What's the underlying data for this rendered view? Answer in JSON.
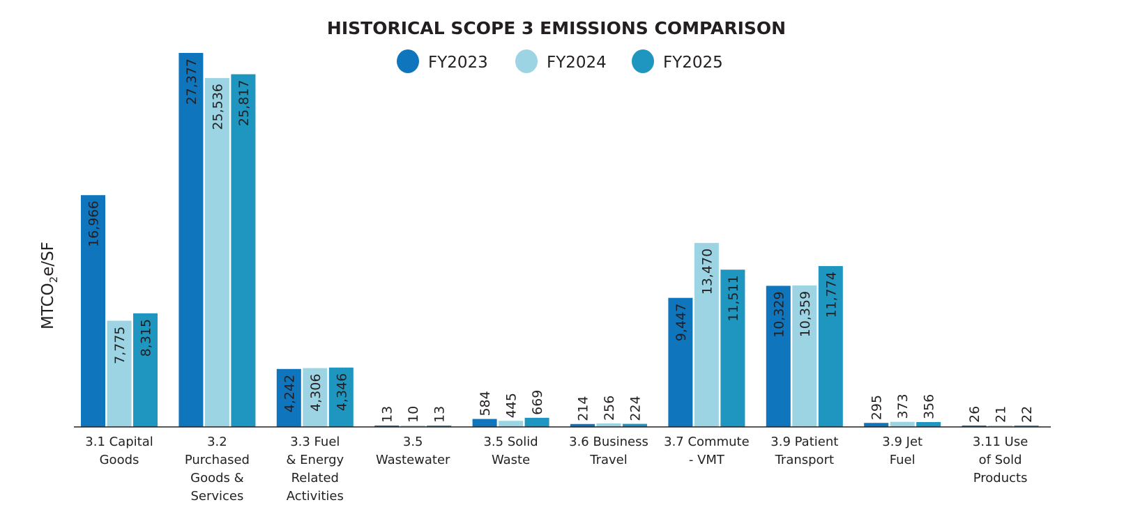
{
  "chart_data": {
    "type": "bar",
    "title": "HISTORICAL SCOPE 3 EMISSIONS COMPARISON",
    "xlabel": "",
    "ylabel": "MTCO2e/SF",
    "ylabel_parts": {
      "main": "MTCO",
      "sub": "2",
      "rest": "e/SF"
    },
    "ylim": [
      0,
      27377
    ],
    "grid": false,
    "legend_placement": "top-center",
    "categories": [
      [
        "3.1 Capital",
        "Goods"
      ],
      [
        "3.2",
        "Purchased",
        "Goods &",
        "Services"
      ],
      [
        "3.3 Fuel",
        "& Energy",
        "Related",
        "Activities"
      ],
      [
        "3.5",
        "Wastewater"
      ],
      [
        "3.5 Solid",
        "Waste"
      ],
      [
        "3.6 Business",
        "Travel"
      ],
      [
        "3.7 Commute",
        "- VMT"
      ],
      [
        "3.9 Patient",
        "Transport"
      ],
      [
        "3.9 Jet",
        "Fuel"
      ],
      [
        "3.11 Use",
        "of Sold",
        "Products"
      ]
    ],
    "series": [
      {
        "name": "FY2023",
        "color": "#0f75bc",
        "values": [
          16966,
          27377,
          4242,
          13,
          584,
          214,
          9447,
          10329,
          295,
          26
        ],
        "labels": [
          "16,966",
          "27,377",
          "4,242",
          "13",
          "584",
          "214",
          "9,447",
          "10,329",
          "295",
          "26"
        ]
      },
      {
        "name": "FY2024",
        "color": "#9cd4e4",
        "values": [
          7775,
          25536,
          4306,
          10,
          445,
          256,
          13470,
          10359,
          373,
          21
        ],
        "labels": [
          "7,775",
          "25,536",
          "4,306",
          "10",
          "445",
          "256",
          "13,470",
          "10,359",
          "373",
          "21"
        ]
      },
      {
        "name": "FY2025",
        "color": "#1e96bf",
        "values": [
          8315,
          25817,
          4346,
          13,
          669,
          224,
          11511,
          11774,
          356,
          22
        ],
        "labels": [
          "8,315",
          "25,817",
          "4,346",
          "13",
          "669",
          "224",
          "11,511",
          "11,774",
          "356",
          "22"
        ]
      }
    ]
  }
}
